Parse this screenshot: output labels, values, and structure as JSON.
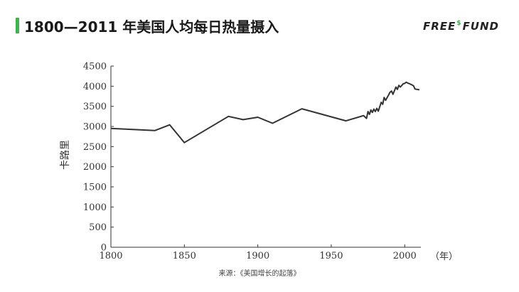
{
  "header": {
    "title": "1800—2011 年美国人均每日热量摄入",
    "brand_part1": "FREE",
    "brand_symbol": "$",
    "brand_part2": "FUND"
  },
  "source": "来源：《美国增长的起落》",
  "colors": {
    "accent": "#3cb54a",
    "line": "#333333"
  },
  "chart_data": {
    "type": "line",
    "title": "",
    "ylabel": "卡路里",
    "xlabel": "（年）",
    "xlim": [
      1800,
      2011
    ],
    "ylim": [
      0,
      4500
    ],
    "x_ticks": [
      1800,
      1850,
      1900,
      1950,
      2000
    ],
    "y_ticks": [
      0,
      500,
      1000,
      1500,
      2000,
      2500,
      3000,
      3500,
      4000,
      4500
    ],
    "grid": false,
    "series": [
      {
        "points": [
          [
            1800,
            2950
          ],
          [
            1830,
            2900
          ],
          [
            1840,
            3040
          ],
          [
            1850,
            2600
          ],
          [
            1880,
            3250
          ],
          [
            1890,
            3170
          ],
          [
            1900,
            3230
          ],
          [
            1910,
            3080
          ],
          [
            1930,
            3440
          ],
          [
            1960,
            3140
          ],
          [
            1972,
            3270
          ],
          [
            1974,
            3200
          ],
          [
            1975,
            3370
          ],
          [
            1976,
            3300
          ],
          [
            1977,
            3410
          ],
          [
            1978,
            3350
          ],
          [
            1979,
            3430
          ],
          [
            1980,
            3370
          ],
          [
            1981,
            3450
          ],
          [
            1982,
            3380
          ],
          [
            1984,
            3600
          ],
          [
            1985,
            3550
          ],
          [
            1986,
            3720
          ],
          [
            1987,
            3650
          ],
          [
            1989,
            3780
          ],
          [
            1990,
            3850
          ],
          [
            1991,
            3880
          ],
          [
            1992,
            3800
          ],
          [
            1994,
            3980
          ],
          [
            1995,
            3920
          ],
          [
            1996,
            4020
          ],
          [
            1997,
            3980
          ],
          [
            1999,
            4060
          ],
          [
            2000,
            4070
          ],
          [
            2001,
            4100
          ],
          [
            2002,
            4080
          ],
          [
            2004,
            4050
          ],
          [
            2006,
            4010
          ],
          [
            2007,
            3930
          ],
          [
            2010,
            3910
          ]
        ]
      }
    ]
  }
}
